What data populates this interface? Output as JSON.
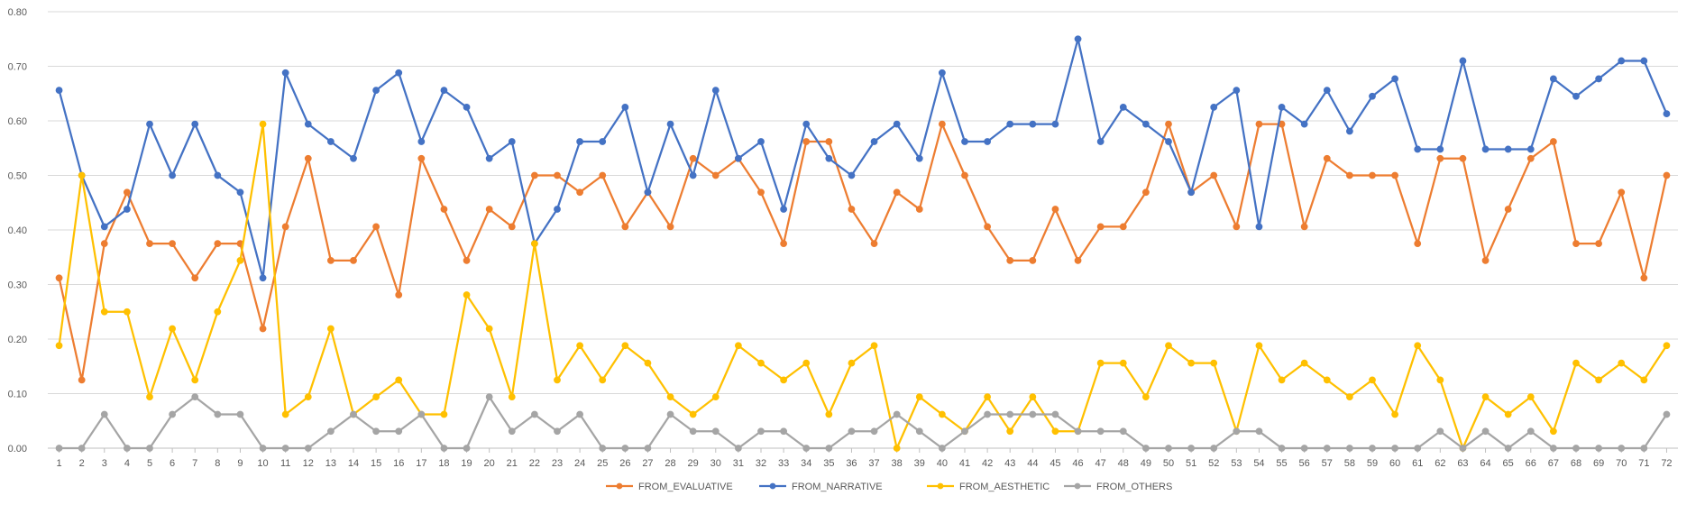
{
  "chart_data": {
    "type": "line",
    "title": "",
    "xlabel": "",
    "ylabel": "",
    "ylim": [
      0,
      0.8
    ],
    "y_ticks": [
      "0.00",
      "0.10",
      "0.20",
      "0.30",
      "0.40",
      "0.50",
      "0.60",
      "0.70",
      "0.80"
    ],
    "grid": "horizontal",
    "legend_position": "bottom",
    "categories": [
      "1",
      "2",
      "3",
      "4",
      "5",
      "6",
      "7",
      "8",
      "9",
      "10",
      "11",
      "12",
      "13",
      "14",
      "15",
      "16",
      "17",
      "18",
      "19",
      "20",
      "21",
      "22",
      "23",
      "24",
      "25",
      "26",
      "27",
      "28",
      "29",
      "30",
      "31",
      "32",
      "33",
      "34",
      "35",
      "36",
      "37",
      "38",
      "39",
      "40",
      "41",
      "42",
      "43",
      "44",
      "45",
      "46",
      "47",
      "48",
      "49",
      "50",
      "51",
      "52",
      "53",
      "54",
      "55",
      "56",
      "57",
      "58",
      "59",
      "60",
      "61",
      "62",
      "63",
      "64",
      "65",
      "66",
      "67",
      "68",
      "69",
      "70",
      "71",
      "72"
    ],
    "series": [
      {
        "name": "FROM_EVALUATIVE",
        "color": "#ED7D31",
        "values": [
          0.312,
          0.125,
          0.375,
          0.469,
          0.375,
          0.375,
          0.312,
          0.375,
          0.375,
          0.219,
          0.406,
          0.531,
          0.344,
          0.344,
          0.406,
          0.281,
          0.531,
          0.438,
          0.344,
          0.438,
          0.406,
          0.5,
          0.5,
          0.469,
          0.5,
          0.406,
          0.469,
          0.406,
          0.531,
          0.5,
          0.531,
          0.469,
          0.375,
          0.562,
          0.562,
          0.438,
          0.375,
          0.469,
          0.438,
          0.594,
          0.5,
          0.406,
          0.344,
          0.344,
          0.438,
          0.344,
          0.406,
          0.406,
          0.469,
          0.594,
          0.469,
          0.5,
          0.406,
          0.594,
          0.594,
          0.406,
          0.531,
          0.5,
          0.5,
          0.5,
          0.375,
          0.531,
          0.531,
          0.344,
          0.438,
          0.531,
          0.562,
          0.375,
          0.375,
          0.469,
          0.312,
          0.5
        ]
      },
      {
        "name": "FROM_NARRATIVE",
        "color": "#4472C4",
        "values": [
          0.656,
          0.5,
          0.406,
          0.438,
          0.594,
          0.5,
          0.594,
          0.5,
          0.469,
          0.312,
          0.688,
          0.594,
          0.562,
          0.531,
          0.656,
          0.688,
          0.562,
          0.656,
          0.625,
          0.531,
          0.562,
          0.375,
          0.438,
          0.562,
          0.562,
          0.625,
          0.469,
          0.594,
          0.5,
          0.656,
          0.531,
          0.562,
          0.438,
          0.594,
          0.531,
          0.5,
          0.562,
          0.594,
          0.531,
          0.688,
          0.562,
          0.562,
          0.594,
          0.594,
          0.594,
          0.75,
          0.562,
          0.625,
          0.594,
          0.562,
          0.469,
          0.625,
          0.656,
          0.406,
          0.625,
          0.594,
          0.656,
          0.581,
          0.645,
          0.677,
          0.548,
          0.548,
          0.71,
          0.548,
          0.548,
          0.548,
          0.677,
          0.645,
          0.677,
          0.71,
          0.71,
          0.613
        ]
      },
      {
        "name": "FROM_AESTHETIC",
        "color": "#FFC000",
        "values": [
          0.188,
          0.5,
          0.25,
          0.25,
          0.094,
          0.219,
          0.125,
          0.25,
          0.344,
          0.594,
          0.062,
          0.094,
          0.219,
          0.062,
          0.094,
          0.125,
          0.062,
          0.062,
          0.281,
          0.219,
          0.094,
          0.375,
          0.125,
          0.188,
          0.125,
          0.188,
          0.156,
          0.094,
          0.062,
          0.094,
          0.188,
          0.156,
          0.125,
          0.156,
          0.062,
          0.156,
          0.188,
          0.0,
          0.094,
          0.062,
          0.031,
          0.094,
          0.031,
          0.094,
          0.031,
          0.031,
          0.156,
          0.156,
          0.094,
          0.188,
          0.156,
          0.156,
          0.031,
          0.188,
          0.125,
          0.156,
          0.125,
          0.094,
          0.125,
          0.062,
          0.188,
          0.125,
          0.0,
          0.094,
          0.062,
          0.094,
          0.031,
          0.156,
          0.125,
          0.156,
          0.125,
          0.188
        ]
      },
      {
        "name": "FROM_OTHERS",
        "color": "#A5A5A5",
        "values": [
          0.0,
          0.0,
          0.062,
          0.0,
          0.0,
          0.062,
          0.094,
          0.062,
          0.062,
          0.0,
          0.0,
          0.0,
          0.031,
          0.062,
          0.031,
          0.031,
          0.062,
          0.0,
          0.0,
          0.094,
          0.031,
          0.062,
          0.031,
          0.062,
          0.0,
          0.0,
          0.0,
          0.062,
          0.031,
          0.031,
          0.0,
          0.031,
          0.031,
          0.0,
          0.0,
          0.031,
          0.031,
          0.062,
          0.031,
          0.0,
          0.031,
          0.062,
          0.062,
          0.062,
          0.062,
          0.031,
          0.031,
          0.031,
          0.0,
          0.0,
          0.0,
          0.0,
          0.031,
          0.031,
          0.0,
          0.0,
          0.0,
          0.0,
          0.0,
          0.0,
          0.0,
          0.031,
          0.0,
          0.031,
          0.0,
          0.031,
          0.0,
          0.0,
          0.0,
          0.0,
          0.0,
          0.062
        ]
      }
    ]
  }
}
